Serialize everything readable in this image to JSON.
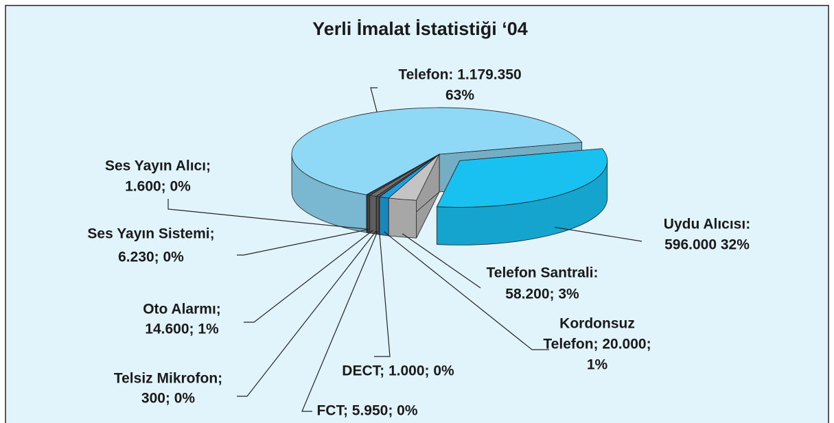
{
  "chart_data": {
    "type": "pie3d",
    "title": "Yerli İmalat İstatistiği ‘04",
    "values": [
      596000,
      58200,
      20000,
      1000,
      5950,
      300,
      14600,
      6230,
      1600,
      1179350
    ],
    "value_labels": [
      [
        "Uydu Alıcısı:",
        "596.000 32%"
      ],
      [
        "Telefon Santrali:",
        "58.200; 3%"
      ],
      [
        "Kordonsuz",
        "Telefon; 20.000;",
        "1%"
      ],
      [
        "DECT; 1.000; 0%"
      ],
      [
        "FCT; 5.950; 0%"
      ],
      [
        "Telsiz Mikrofon;",
        "300; 0%"
      ],
      [
        "Oto Alarmı;",
        "14.600; 1%"
      ],
      [
        "Ses Yayın Sistemi;",
        "6.230; 0%"
      ],
      [
        "Ses Yayın Alıcı;",
        "1.600; 0%"
      ],
      [
        "Telefon: 1.179.350",
        "63%"
      ]
    ],
    "colors": [
      "#19c1f1",
      "#c4c4c4",
      "#1b9fe0",
      "#2f5f9f",
      "#5f5f5f",
      "#9a9aa8",
      "#6e6e6e",
      "#4a4a4a",
      "#8e8e8e",
      "#90d9f6"
    ],
    "exploded": [
      true,
      false,
      false,
      false,
      false,
      false,
      false,
      false,
      false,
      false
    ]
  }
}
